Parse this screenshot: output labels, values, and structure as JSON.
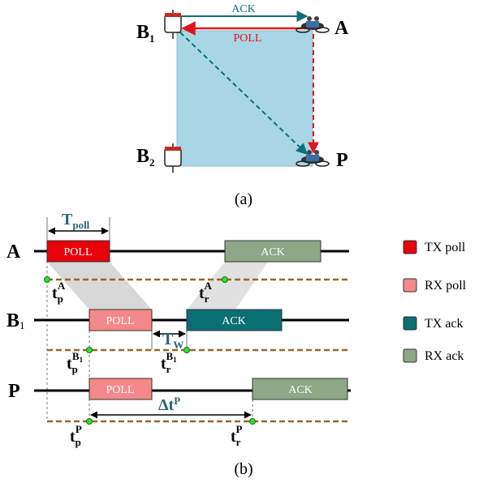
{
  "part_a": {
    "ack_label": "ACK",
    "poll_label": "POLL",
    "nodes": [
      {
        "base": "B",
        "sub": "1"
      },
      {
        "base": "A"
      },
      {
        "base": "B",
        "sub": "2"
      },
      {
        "base": "P"
      }
    ],
    "caption": "(a)"
  },
  "part_b": {
    "t_poll": {
      "base": "T",
      "sub": "poll"
    },
    "t_w": {
      "base": "T",
      "sub": "W"
    },
    "delta_t": {
      "base": "Δt",
      "sup": "P"
    },
    "rows": [
      {
        "label": {
          "base": "A"
        },
        "poll": "POLL",
        "ack": "ACK",
        "t_p": {
          "base": "t",
          "sub": "p",
          "sup": "A"
        },
        "t_r": {
          "base": "t",
          "sub": "r",
          "sup": "A"
        }
      },
      {
        "label": {
          "base": "B",
          "sub": "1"
        },
        "poll": "POLL",
        "ack": "ACK",
        "t_p": {
          "base": "t",
          "sub": "p",
          "sup": "B",
          "sup_sub": "1"
        },
        "t_r": {
          "base": "t",
          "sub": "r",
          "sup": "B",
          "sup_sub": "1"
        }
      },
      {
        "label": {
          "base": "P"
        },
        "poll": "POLL",
        "ack": "ACK",
        "t_p": {
          "base": "t",
          "sub": "p",
          "sup": "P"
        },
        "t_r": {
          "base": "t",
          "sub": "r",
          "sup": "P"
        }
      }
    ],
    "caption": "(b)"
  },
  "legend": [
    "TX poll",
    "RX poll",
    "TX ack",
    "RX ack"
  ]
}
